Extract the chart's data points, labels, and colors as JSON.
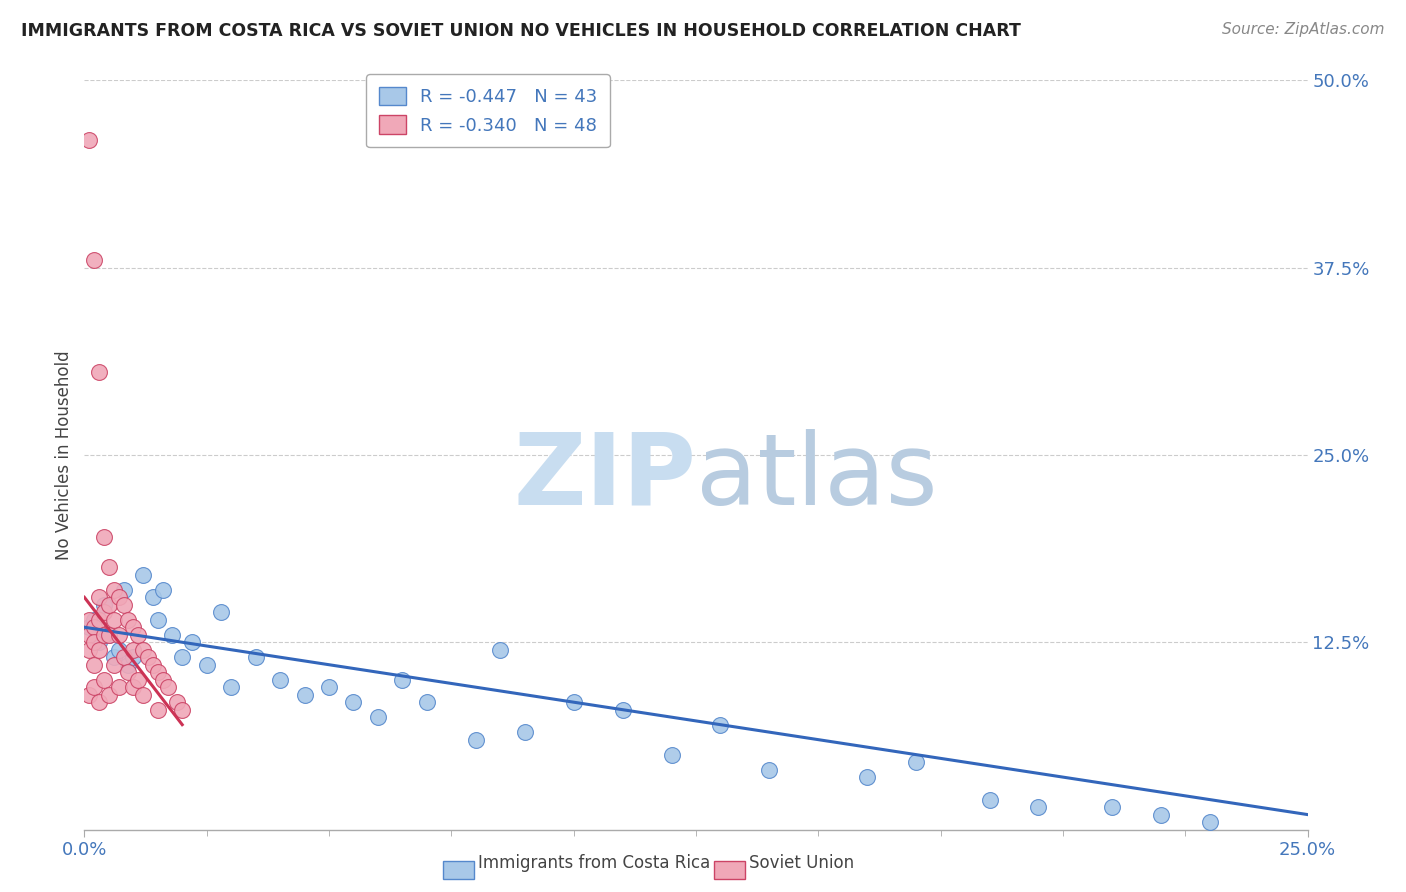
{
  "title": "IMMIGRANTS FROM COSTA RICA VS SOVIET UNION NO VEHICLES IN HOUSEHOLD CORRELATION CHART",
  "source": "Source: ZipAtlas.com",
  "ylabel": "No Vehicles in Household",
  "xlim": [
    0.0,
    0.25
  ],
  "ylim": [
    0.0,
    0.5
  ],
  "legend1_label": "R = -0.447   N = 43",
  "legend2_label": "R = -0.340   N = 48",
  "color_blue": "#a8c8e8",
  "color_pink": "#f0a8b8",
  "color_blue_edge": "#5588cc",
  "color_pink_edge": "#cc4466",
  "color_blue_line": "#3366bb",
  "color_pink_line": "#cc3355",
  "watermark_zip": "#c8ddf0",
  "watermark_atlas": "#b8cce0",
  "costa_rica_x": [
    0.001,
    0.002,
    0.003,
    0.004,
    0.005,
    0.006,
    0.007,
    0.008,
    0.009,
    0.01,
    0.012,
    0.014,
    0.015,
    0.016,
    0.018,
    0.02,
    0.022,
    0.025,
    0.028,
    0.03,
    0.035,
    0.04,
    0.045,
    0.05,
    0.055,
    0.06,
    0.065,
    0.07,
    0.08,
    0.085,
    0.09,
    0.1,
    0.11,
    0.12,
    0.13,
    0.14,
    0.16,
    0.17,
    0.185,
    0.195,
    0.21,
    0.22,
    0.23
  ],
  "costa_rica_y": [
    0.135,
    0.14,
    0.125,
    0.15,
    0.13,
    0.115,
    0.12,
    0.16,
    0.11,
    0.115,
    0.17,
    0.155,
    0.14,
    0.16,
    0.13,
    0.115,
    0.125,
    0.11,
    0.145,
    0.095,
    0.115,
    0.1,
    0.09,
    0.095,
    0.085,
    0.075,
    0.1,
    0.085,
    0.06,
    0.12,
    0.065,
    0.085,
    0.08,
    0.05,
    0.07,
    0.04,
    0.035,
    0.045,
    0.02,
    0.015,
    0.015,
    0.01,
    0.005
  ],
  "soviet_x": [
    0.001,
    0.001,
    0.001,
    0.001,
    0.001,
    0.002,
    0.002,
    0.002,
    0.002,
    0.002,
    0.003,
    0.003,
    0.003,
    0.003,
    0.003,
    0.004,
    0.004,
    0.004,
    0.004,
    0.005,
    0.005,
    0.005,
    0.005,
    0.006,
    0.006,
    0.006,
    0.007,
    0.007,
    0.007,
    0.008,
    0.008,
    0.009,
    0.009,
    0.01,
    0.01,
    0.01,
    0.011,
    0.011,
    0.012,
    0.012,
    0.013,
    0.014,
    0.015,
    0.015,
    0.016,
    0.017,
    0.019,
    0.02
  ],
  "soviet_y": [
    0.46,
    0.14,
    0.13,
    0.12,
    0.09,
    0.38,
    0.135,
    0.125,
    0.11,
    0.095,
    0.305,
    0.155,
    0.14,
    0.12,
    0.085,
    0.195,
    0.145,
    0.13,
    0.1,
    0.175,
    0.15,
    0.13,
    0.09,
    0.16,
    0.14,
    0.11,
    0.155,
    0.13,
    0.095,
    0.15,
    0.115,
    0.14,
    0.105,
    0.135,
    0.12,
    0.095,
    0.13,
    0.1,
    0.12,
    0.09,
    0.115,
    0.11,
    0.105,
    0.08,
    0.1,
    0.095,
    0.085,
    0.08
  ],
  "cr_line_x": [
    0.0,
    0.25
  ],
  "cr_line_y": [
    0.135,
    0.01
  ],
  "su_line_x": [
    0.0,
    0.02
  ],
  "su_line_y": [
    0.155,
    0.07
  ]
}
